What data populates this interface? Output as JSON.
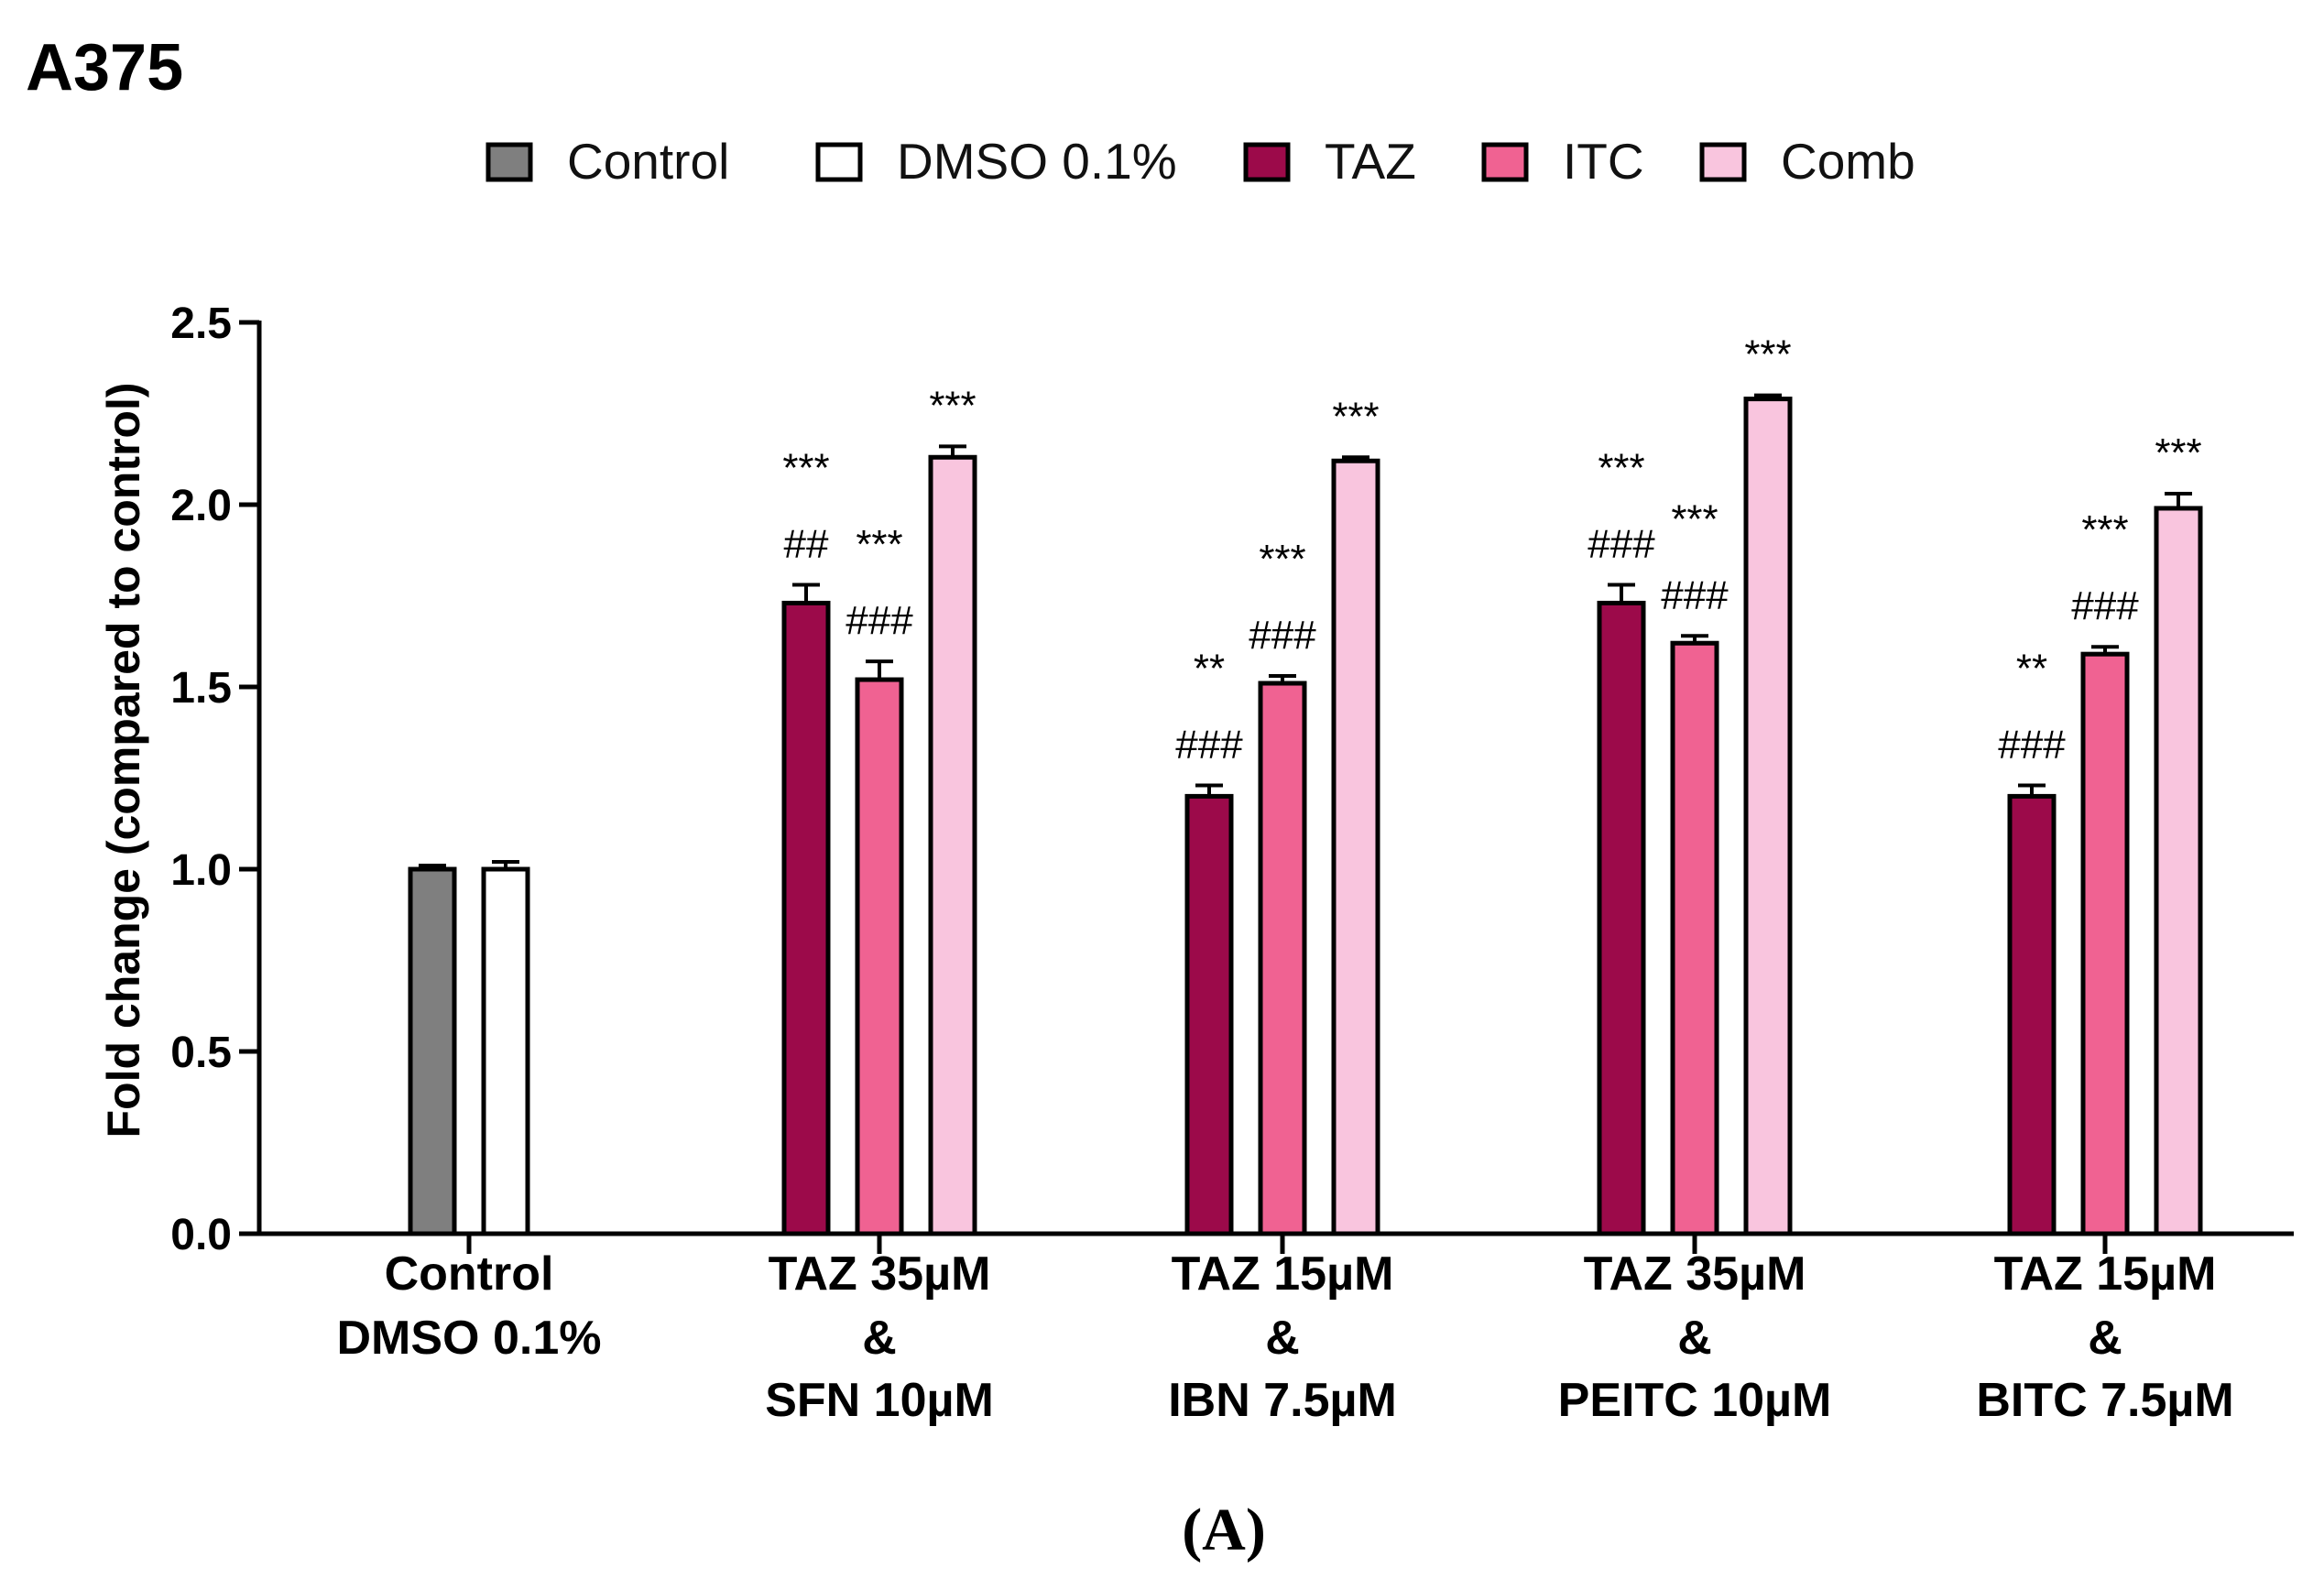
{
  "chart_data": {
    "type": "bar",
    "title": "A375",
    "panel_label": "(A)",
    "ylabel": "Fold change (compared to control)",
    "ylim": [
      0,
      2.5
    ],
    "yticks": [
      "0.0",
      "0.5",
      "1.0",
      "1.5",
      "2.0",
      "2.5"
    ],
    "legend_position": "top",
    "series": [
      {
        "name": "Control",
        "color": "#7f7f7f"
      },
      {
        "name": "DMSO 0.1%",
        "color": "#ffffff"
      },
      {
        "name": "TAZ",
        "color": "#9c0a4a"
      },
      {
        "name": "ITC",
        "color": "#f06292"
      },
      {
        "name": "Comb",
        "color": "#f9c5de"
      }
    ],
    "groups": [
      {
        "label": [
          "Control",
          "DMSO 0.1%"
        ],
        "bars": [
          {
            "series": "Control",
            "value": 1.0,
            "error": 0.01,
            "annotations": []
          },
          {
            "series": "DMSO 0.1%",
            "value": 1.0,
            "error": 0.02,
            "annotations": []
          }
        ]
      },
      {
        "label": [
          "TAZ 35µM",
          "&",
          "SFN 10µM"
        ],
        "bars": [
          {
            "series": "TAZ",
            "value": 1.73,
            "error": 0.05,
            "annotations": [
              "##",
              "***"
            ]
          },
          {
            "series": "ITC",
            "value": 1.52,
            "error": 0.05,
            "annotations": [
              "###",
              "***"
            ]
          },
          {
            "series": "Comb",
            "value": 2.13,
            "error": 0.03,
            "annotations": [
              "***"
            ]
          }
        ]
      },
      {
        "label": [
          "TAZ 15µM",
          "&",
          "IBN 7.5µM"
        ],
        "bars": [
          {
            "series": "TAZ",
            "value": 1.2,
            "error": 0.03,
            "annotations": [
              "###",
              "**"
            ]
          },
          {
            "series": "ITC",
            "value": 1.51,
            "error": 0.02,
            "annotations": [
              "###",
              "***"
            ]
          },
          {
            "series": "Comb",
            "value": 2.12,
            "error": 0.01,
            "annotations": [
              "***"
            ]
          }
        ]
      },
      {
        "label": [
          "TAZ 35µM",
          "&",
          "PEITC 10µM"
        ],
        "bars": [
          {
            "series": "TAZ",
            "value": 1.73,
            "error": 0.05,
            "annotations": [
              "###",
              "***"
            ]
          },
          {
            "series": "ITC",
            "value": 1.62,
            "error": 0.02,
            "annotations": [
              "###",
              "***"
            ]
          },
          {
            "series": "Comb",
            "value": 2.29,
            "error": 0.01,
            "annotations": [
              "***"
            ]
          }
        ]
      },
      {
        "label": [
          "TAZ 15µM",
          "&",
          "BITC 7.5µM"
        ],
        "bars": [
          {
            "series": "TAZ",
            "value": 1.2,
            "error": 0.03,
            "annotations": [
              "###",
              "**"
            ]
          },
          {
            "series": "ITC",
            "value": 1.59,
            "error": 0.02,
            "annotations": [
              "###",
              "***"
            ]
          },
          {
            "series": "Comb",
            "value": 1.99,
            "error": 0.04,
            "annotations": [
              "***"
            ]
          }
        ]
      }
    ]
  }
}
